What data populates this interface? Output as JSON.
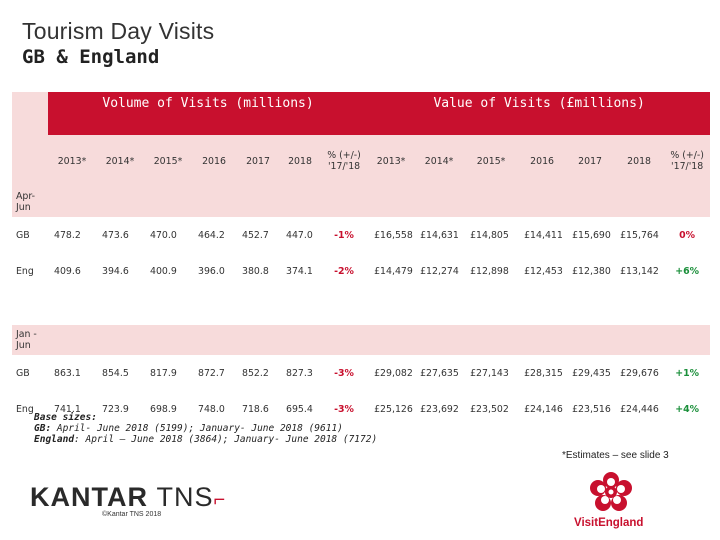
{
  "header": {
    "title": "Tourism Day Visits",
    "subtitle": "GB & England"
  },
  "table": {
    "volume_header": "Volume of Visits (millions)",
    "value_header": "Value of Visits (£millions)",
    "years": [
      "2013*",
      "2014*",
      "2015*",
      "2016",
      "2017",
      "2018"
    ],
    "pct_header": "% (+/-) '17/'18",
    "sections": [
      {
        "label": "Apr-Jun",
        "rows": [
          {
            "label": "GB",
            "volume": [
              "478.2",
              "473.6",
              "470.0",
              "464.2",
              "452.7",
              "447.0"
            ],
            "volume_change": "-1%",
            "value": [
              "£16,558",
              "£14,631",
              "£14,805",
              "£14,411",
              "£15,690",
              "£15,764"
            ],
            "value_change": "0%"
          },
          {
            "label": "Eng",
            "volume": [
              "409.6",
              "394.6",
              "400.9",
              "396.0",
              "380.8",
              "374.1"
            ],
            "volume_change": "-2%",
            "value": [
              "£14,479",
              "£12,274",
              "£12,898",
              "£12,453",
              "£12,380",
              "£13,142"
            ],
            "value_change": "+6%"
          }
        ]
      },
      {
        "label": "Jan - Jun",
        "rows": [
          {
            "label": "GB",
            "volume": [
              "863.1",
              "854.5",
              "817.9",
              "872.7",
              "852.2",
              "827.3"
            ],
            "volume_change": "-3%",
            "value": [
              "£29,082",
              "£27,635",
              "£27,143",
              "£28,315",
              "£29,435",
              "£29,676"
            ],
            "value_change": "+1%"
          },
          {
            "label": "Eng",
            "volume": [
              "741.1",
              "723.9",
              "698.9",
              "748.0",
              "718.6",
              "695.4"
            ],
            "volume_change": "-3%",
            "value": [
              "£25,126",
              "£23,692",
              "£23,502",
              "£24,146",
              "£23,516",
              "£24,446"
            ],
            "value_change": "+4%"
          }
        ]
      }
    ]
  },
  "footnotes": {
    "base_title": "Base sizes:",
    "base_gb_label": "GB:",
    "base_gb": "April- June 2018 (5199); January- June 2018 (9611)",
    "base_eng_label": "England",
    "base_eng": ": April – June 2018 (3864); January- June 2018 (7172)",
    "estimates": "*Estimates – see slide 3"
  },
  "branding": {
    "kantar": "KANTAR",
    "tns": "TNS",
    "copyright": "©Kantar TNS 2018",
    "visitengland": "VisitEngland",
    "kantar_logo_icon": "kantar-tns-logo",
    "rose_icon": "tudor-rose-icon"
  },
  "colors": {
    "header_red": "#c8102e",
    "row_pink": "#f7dbdb",
    "negative": "#c8102e",
    "positive": "#1a8f3a"
  }
}
